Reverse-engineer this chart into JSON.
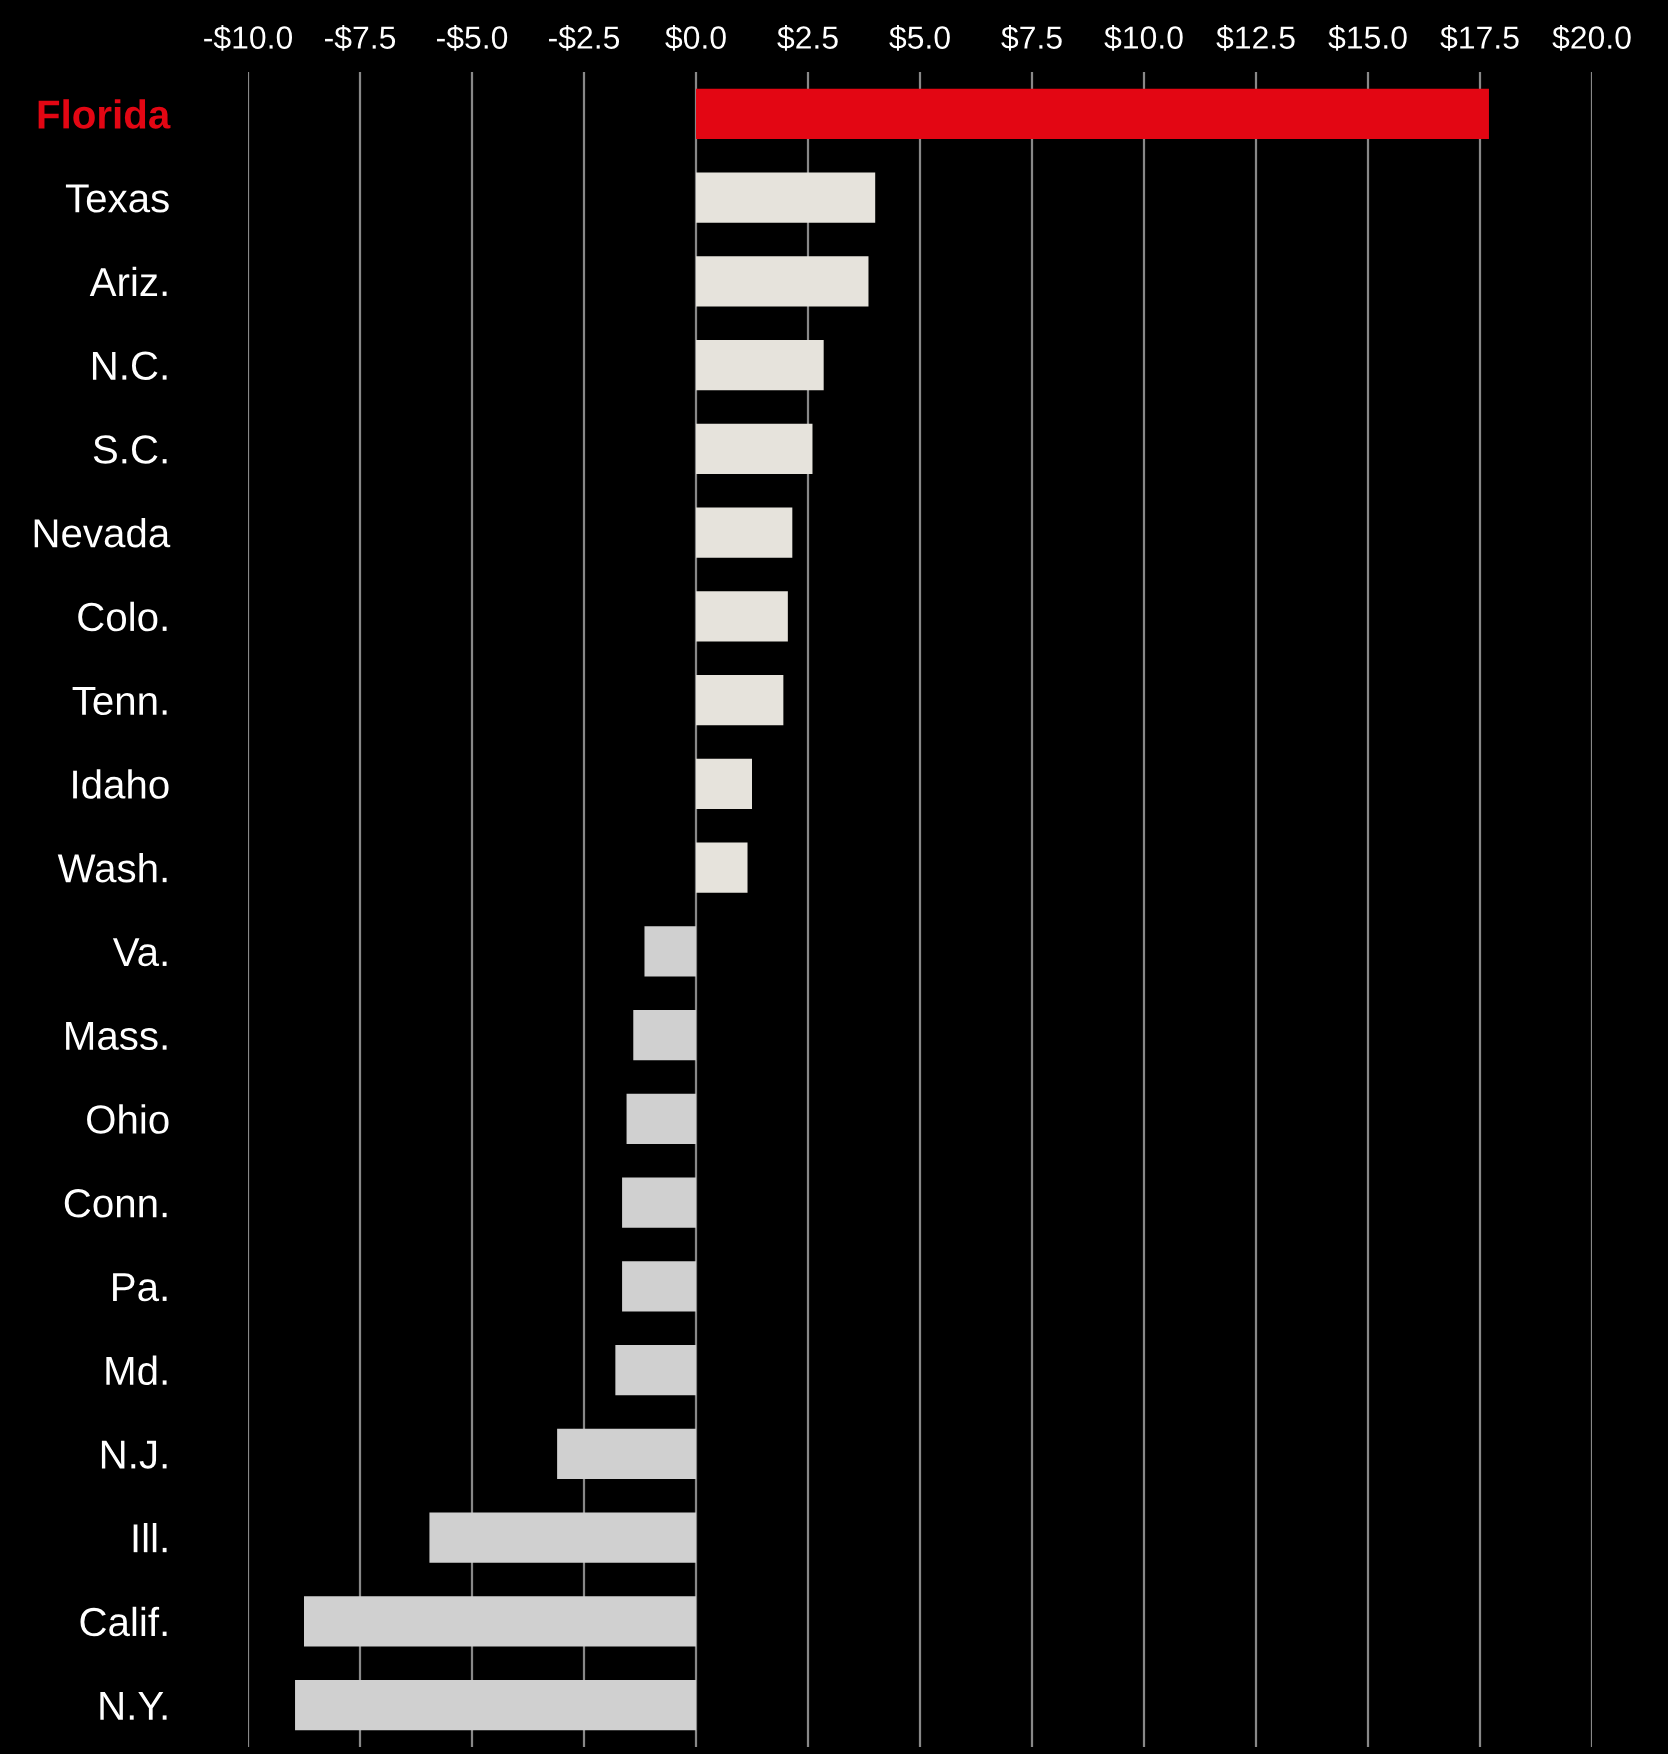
{
  "chart_data": {
    "type": "bar",
    "orientation": "horizontal",
    "categories": [
      "Florida",
      "Texas",
      "Ariz.",
      "N.C.",
      "S.C.",
      "Nevada",
      "Colo.",
      "Tenn.",
      "Idaho",
      "Wash.",
      "Va.",
      "Mass.",
      "Ohio",
      "Conn.",
      "Pa.",
      "Md.",
      "N.J.",
      "Ill.",
      "Calif.",
      "N.Y."
    ],
    "values": [
      17.7,
      4.0,
      3.85,
      2.85,
      2.6,
      2.15,
      2.05,
      1.95,
      1.25,
      1.15,
      -1.15,
      -1.4,
      -1.55,
      -1.65,
      -1.65,
      -1.8,
      -3.1,
      -5.95,
      -8.75,
      -8.95
    ],
    "colors": [
      "#e30613",
      "#e6e3dc",
      "#e6e3dc",
      "#e6e3dc",
      "#e6e3dc",
      "#e6e3dc",
      "#e6e3dc",
      "#e6e3dc",
      "#e6e3dc",
      "#e6e3dc",
      "#d0d0d0",
      "#d0d0d0",
      "#d0d0d0",
      "#d0d0d0",
      "#d0d0d0",
      "#d0d0d0",
      "#d0d0d0",
      "#d0d0d0",
      "#d0d0d0",
      "#d0d0d0"
    ],
    "xlim": [
      -10,
      20
    ],
    "xticks": [
      {
        "value": -10,
        "label": "-$10.0"
      },
      {
        "value": -7.5,
        "label": "-$7.5"
      },
      {
        "value": -5,
        "label": "-$5.0"
      },
      {
        "value": -2.5,
        "label": "-$2.5"
      },
      {
        "value": 0,
        "label": "$0.0"
      },
      {
        "value": 2.5,
        "label": "$2.5"
      },
      {
        "value": 5,
        "label": "$5.0"
      },
      {
        "value": 7.5,
        "label": "$7.5"
      },
      {
        "value": 10,
        "label": "$10.0"
      },
      {
        "value": 12.5,
        "label": "$12.5"
      },
      {
        "value": 15,
        "label": "$15.0"
      },
      {
        "value": 17.5,
        "label": "$17.5"
      },
      {
        "value": 20,
        "label": "$20.0"
      }
    ],
    "grid": "x"
  }
}
